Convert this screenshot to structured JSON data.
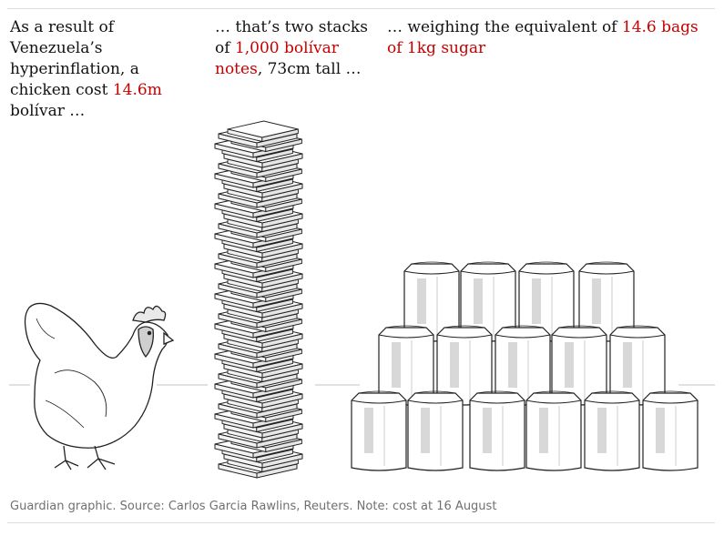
{
  "panels": [
    {
      "text_before": "As a result of Venezuela’s hyperinflation, a chicken cost ",
      "highlight": "14.6m",
      "text_after": " bolívar …"
    },
    {
      "text_before": "… that’s two stacks of ",
      "highlight": "1,000 bolívar notes",
      "text_after": ", 73cm tall …"
    },
    {
      "text_before": "… weighing the equivalent of ",
      "highlight": "14.6 bags of 1kg sugar",
      "text_after": ""
    }
  ],
  "source": "Guardian graphic. Source: Carlos Garcia Rawlins, Reuters. Note: cost at 16 August",
  "colors": {
    "highlight": "#c70000",
    "text": "#121212",
    "source": "#707070",
    "rule": "#dcdcdc"
  },
  "illustrations": [
    "chicken-icon",
    "banknote-stack-icon",
    "sugar-bag-icon"
  ]
}
